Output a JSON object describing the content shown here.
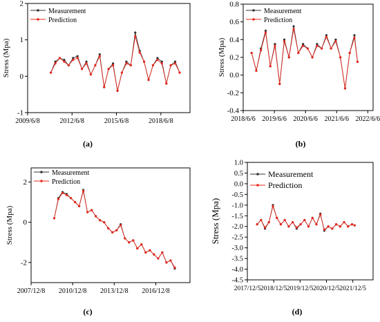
{
  "chart_data": [
    {
      "type": "line",
      "panel_label": "(a)",
      "xlabel": "",
      "ylabel": "Stress (Mpa)",
      "x_ticks": [
        "2009/6/8",
        "2012/6/8",
        "2015/6/8",
        "2018/6/8"
      ],
      "x_tick_years": [
        2009.43,
        2012.43,
        2015.43,
        2018.43
      ],
      "xlim": [
        2009.43,
        2020.4
      ],
      "y_ticks": [
        "-1",
        "0",
        "1",
        "2"
      ],
      "ylim": [
        -1,
        2
      ],
      "series": [
        {
          "name": "Measurement",
          "color": "#333333",
          "x": [
            2011.0,
            2011.3,
            2011.6,
            2011.9,
            2012.2,
            2012.5,
            2012.8,
            2013.1,
            2013.4,
            2013.7,
            2014.0,
            2014.3,
            2014.6,
            2014.9,
            2015.2,
            2015.5,
            2015.8,
            2016.1,
            2016.4,
            2016.7,
            2017.0,
            2017.3,
            2017.6,
            2017.9,
            2018.2,
            2018.5,
            2018.8,
            2019.1,
            2019.4,
            2019.7
          ],
          "y": [
            0.1,
            0.4,
            0.5,
            0.45,
            0.3,
            0.5,
            0.55,
            0.2,
            0.4,
            0.05,
            0.3,
            0.6,
            -0.3,
            0.2,
            0.35,
            -0.4,
            0.1,
            0.4,
            0.3,
            1.2,
            0.7,
            0.4,
            -0.1,
            0.3,
            0.5,
            0.4,
            -0.2,
            0.3,
            0.4,
            0.1
          ]
        },
        {
          "name": "Prediction",
          "color": "#e8281e",
          "x": [
            2011.0,
            2011.3,
            2011.6,
            2011.9,
            2012.2,
            2012.5,
            2012.8,
            2013.1,
            2013.4,
            2013.7,
            2014.0,
            2014.3,
            2014.6,
            2014.9,
            2015.2,
            2015.5,
            2015.8,
            2016.1,
            2016.4,
            2016.7,
            2017.0,
            2017.3,
            2017.6,
            2017.9,
            2018.2,
            2018.5,
            2018.8,
            2019.1,
            2019.4,
            2019.7
          ],
          "y": [
            0.1,
            0.35,
            0.5,
            0.4,
            0.3,
            0.45,
            0.5,
            0.2,
            0.35,
            0.05,
            0.3,
            0.55,
            -0.3,
            0.2,
            0.3,
            -0.4,
            0.1,
            0.35,
            0.3,
            1.1,
            0.65,
            0.4,
            -0.1,
            0.3,
            0.45,
            0.35,
            -0.2,
            0.3,
            0.35,
            0.1
          ]
        }
      ]
    },
    {
      "type": "line",
      "panel_label": "(b)",
      "xlabel": "",
      "ylabel": "Stress (Mpa)",
      "x_ticks": [
        "2018/6/6",
        "2019/6/6",
        "2020/6/6",
        "2021/6/6",
        "2022/6/6"
      ],
      "x_tick_years": [
        2018.43,
        2019.43,
        2020.43,
        2021.43,
        2022.43
      ],
      "xlim": [
        2018.43,
        2022.6
      ],
      "y_ticks": [
        "-0.4",
        "-0.2",
        "0.0",
        "0.2",
        "0.4",
        "0.6",
        "0.8"
      ],
      "ylim": [
        -0.4,
        0.8
      ],
      "series": [
        {
          "name": "Measurement",
          "color": "#333333",
          "x": [
            2018.7,
            2018.85,
            2019.0,
            2019.15,
            2019.3,
            2019.45,
            2019.6,
            2019.75,
            2019.9,
            2020.05,
            2020.2,
            2020.35,
            2020.5,
            2020.65,
            2020.8,
            2020.95,
            2021.1,
            2021.25,
            2021.4,
            2021.55,
            2021.7,
            2021.85,
            2022.0,
            2022.1
          ],
          "y": [
            0.25,
            0.05,
            0.3,
            0.5,
            0.1,
            0.35,
            -0.1,
            0.4,
            0.2,
            0.55,
            0.25,
            0.35,
            0.3,
            0.2,
            0.35,
            0.3,
            0.45,
            0.3,
            0.4,
            0.2,
            -0.15,
            0.25,
            0.45,
            0.15
          ]
        },
        {
          "name": "Prediction",
          "color": "#e8281e",
          "x": [
            2018.7,
            2018.85,
            2019.0,
            2019.15,
            2019.3,
            2019.45,
            2019.6,
            2019.75,
            2019.9,
            2020.05,
            2020.2,
            2020.35,
            2020.5,
            2020.65,
            2020.8,
            2020.95,
            2021.1,
            2021.25,
            2021.4,
            2021.55,
            2021.7,
            2021.85,
            2022.0,
            2022.1
          ],
          "y": [
            0.25,
            0.05,
            0.28,
            0.48,
            0.1,
            0.33,
            -0.1,
            0.38,
            0.2,
            0.52,
            0.25,
            0.33,
            0.3,
            0.2,
            0.33,
            0.3,
            0.43,
            0.3,
            0.38,
            0.2,
            -0.15,
            0.25,
            0.42,
            0.15
          ]
        }
      ]
    },
    {
      "type": "line",
      "panel_label": "(c)",
      "xlabel": "",
      "ylabel": "Stress (Mpa)",
      "x_ticks": [
        "2007/12/8",
        "2010/12/8",
        "2013/12/8",
        "2016/12/8"
      ],
      "x_tick_years": [
        2007.93,
        2010.93,
        2013.93,
        2016.93
      ],
      "xlim": [
        2007.93,
        2019.4
      ],
      "y_ticks": [
        "-2",
        "0",
        "2"
      ],
      "ylim": [
        -3,
        2.7
      ],
      "series": [
        {
          "name": "Measurement",
          "color": "#333333",
          "x": [
            2009.6,
            2009.9,
            2010.2,
            2010.5,
            2010.8,
            2011.1,
            2011.4,
            2011.7,
            2012.0,
            2012.3,
            2012.6,
            2012.9,
            2013.2,
            2013.5,
            2013.8,
            2014.1,
            2014.4,
            2014.7,
            2015.0,
            2015.3,
            2015.6,
            2015.9,
            2016.2,
            2016.5,
            2016.8,
            2017.1,
            2017.4,
            2017.7,
            2018.0,
            2018.3
          ],
          "y": [
            0.2,
            1.2,
            1.5,
            1.4,
            1.2,
            1.0,
            0.8,
            1.6,
            0.5,
            0.6,
            0.3,
            0.1,
            0.0,
            -0.3,
            -0.5,
            -0.4,
            -0.1,
            -0.8,
            -1.0,
            -0.9,
            -1.3,
            -1.1,
            -1.5,
            -1.4,
            -1.6,
            -1.8,
            -1.5,
            -2.0,
            -1.9,
            -2.3
          ]
        },
        {
          "name": "Prediction",
          "color": "#e8281e",
          "x": [
            2009.6,
            2009.9,
            2010.2,
            2010.5,
            2010.8,
            2011.1,
            2011.4,
            2011.7,
            2012.0,
            2012.3,
            2012.6,
            2012.9,
            2013.2,
            2013.5,
            2013.8,
            2014.1,
            2014.4,
            2014.7,
            2015.0,
            2015.3,
            2015.6,
            2015.9,
            2016.2,
            2016.5,
            2016.8,
            2017.1,
            2017.4,
            2017.7,
            2018.0,
            2018.3
          ],
          "y": [
            0.2,
            1.15,
            1.45,
            1.35,
            1.2,
            1.0,
            0.8,
            1.55,
            0.5,
            0.6,
            0.3,
            0.1,
            0.0,
            -0.3,
            -0.5,
            -0.4,
            -0.15,
            -0.8,
            -1.0,
            -0.9,
            -1.3,
            -1.1,
            -1.5,
            -1.4,
            -1.6,
            -1.8,
            -1.5,
            -2.0,
            -1.9,
            -2.25
          ]
        }
      ]
    },
    {
      "type": "line",
      "panel_label": "(d)",
      "xlabel": "",
      "ylabel": "Stress (Mpa)",
      "x_ticks": [
        "2017/12/5",
        "2018/12/5",
        "2019/12/5",
        "2020/12/5",
        "2021/12/5"
      ],
      "x_tick_years": [
        2017.93,
        2018.93,
        2019.93,
        2020.93,
        2021.93
      ],
      "xlim": [
        2017.93,
        2022.7
      ],
      "y_ticks": [
        "-4.5",
        "-4.0",
        "-3.5",
        "-3.0",
        "-2.5",
        "-2.0",
        "-1.5",
        "-1.0",
        "-0.5",
        "0.0",
        "0.5",
        "1.0"
      ],
      "ylim": [
        -4.5,
        1.0
      ],
      "series": [
        {
          "name": "Measurement",
          "color": "#333333",
          "x": [
            2018.3,
            2018.45,
            2018.6,
            2018.75,
            2018.9,
            2019.05,
            2019.2,
            2019.35,
            2019.5,
            2019.65,
            2019.8,
            2019.95,
            2020.1,
            2020.25,
            2020.4,
            2020.55,
            2020.7,
            2020.85,
            2021.0,
            2021.15,
            2021.3,
            2021.45,
            2021.6,
            2021.75,
            2021.9,
            2022.0
          ],
          "y": [
            -1.9,
            -1.7,
            -2.1,
            -1.8,
            -1.0,
            -1.6,
            -1.9,
            -1.7,
            -2.0,
            -1.8,
            -2.1,
            -1.9,
            -1.7,
            -2.0,
            -1.6,
            -1.9,
            -1.4,
            -2.2,
            -2.0,
            -2.1,
            -1.9,
            -2.0,
            -1.8,
            -2.0,
            -1.9,
            -1.95
          ]
        },
        {
          "name": "Prediction",
          "color": "#e8281e",
          "x": [
            2018.3,
            2018.45,
            2018.6,
            2018.75,
            2018.9,
            2019.05,
            2019.2,
            2019.35,
            2019.5,
            2019.65,
            2019.8,
            2019.95,
            2020.1,
            2020.25,
            2020.4,
            2020.55,
            2020.7,
            2020.85,
            2021.0,
            2021.15,
            2021.3,
            2021.45,
            2021.6,
            2021.75,
            2021.9,
            2022.0
          ],
          "y": [
            -1.9,
            -1.7,
            -2.05,
            -1.8,
            -1.05,
            -1.6,
            -1.9,
            -1.7,
            -2.0,
            -1.8,
            -2.05,
            -1.9,
            -1.7,
            -2.0,
            -1.6,
            -1.9,
            -1.45,
            -2.15,
            -2.0,
            -2.1,
            -1.9,
            -2.0,
            -1.8,
            -2.0,
            -1.9,
            -1.95
          ]
        }
      ]
    }
  ]
}
